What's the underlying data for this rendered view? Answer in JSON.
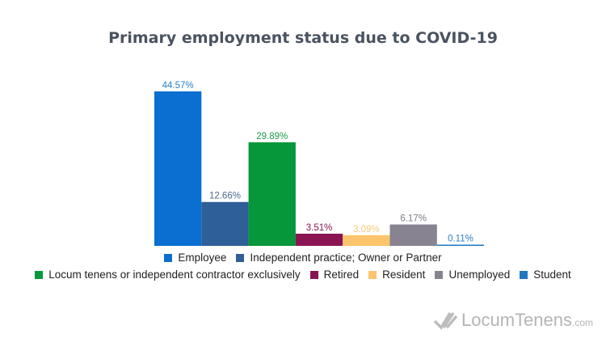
{
  "chart_data": {
    "type": "bar",
    "title": "Primary employment status due to COVID-19",
    "categories": [
      "Employee",
      "Independent practice; Owner or Partner",
      "Locum tenens or independent contractor exclusively",
      "Retired",
      "Resident",
      "Unemployed",
      "Student"
    ],
    "values": [
      44.57,
      12.66,
      29.89,
      3.51,
      3.09,
      6.17,
      0.11
    ],
    "labels": [
      "44.57%",
      "12.66%",
      "29.89%",
      "3.51%",
      "3.09%",
      "6.17%",
      "0.11%"
    ],
    "colors": [
      "#0a6fd0",
      "#2f5f99",
      "#06973a",
      "#8b1553",
      "#fcc46c",
      "#878390",
      "#1f78c1"
    ],
    "label_colors": [
      "#2a7fc9",
      "#4a6a90",
      "#1f9a4a",
      "#8b1553",
      "#f8c878",
      "#7d7a86",
      "#2a7fc9"
    ],
    "ylim": [
      0,
      45
    ],
    "grid": false,
    "legend_position": "bottom"
  },
  "logo": {
    "name": "LocumTenens",
    "suffix": ".com"
  }
}
